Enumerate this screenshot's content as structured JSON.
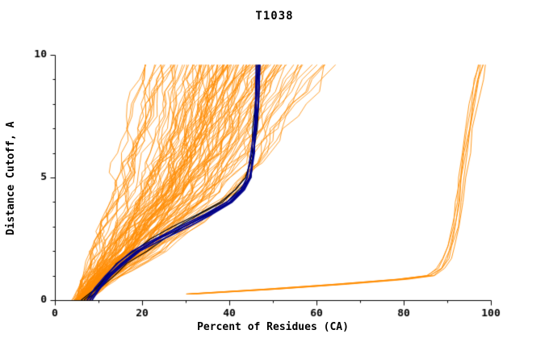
{
  "chart_data": {
    "type": "line",
    "title": "T1038",
    "xlabel": "Percent of Residues (CA)",
    "ylabel": "Distance Cutoff, A",
    "xlim": [
      0,
      100
    ],
    "ylim": [
      0,
      10
    ],
    "x_ticks": [
      0,
      20,
      40,
      60,
      80,
      100
    ],
    "x_minor_step": 10,
    "y_ticks": [
      0,
      5,
      10
    ],
    "y_minor_step": 1,
    "grid": false,
    "legend": null,
    "colors": {
      "background": "#ffffff",
      "axis": "#000000",
      "model_fan": "#ff8c00",
      "highlight_navy": "#00008b",
      "highlight_black": "#000000"
    },
    "seed": 42,
    "families": [
      {
        "name": "model-fan-orange",
        "description": "large fan of model curves, percent of CA residues under each distance cutoff",
        "color": "#ff8c00",
        "count": 115,
        "line_width": 0.8,
        "jitter": 1.8,
        "drift": 0.06,
        "anchors": [
          [
            0.0,
            4,
            8
          ],
          [
            0.4,
            4.5,
            11
          ],
          [
            0.8,
            5,
            14
          ],
          [
            1.2,
            5.5,
            18
          ],
          [
            1.6,
            6,
            22
          ],
          [
            2.0,
            6.5,
            26
          ],
          [
            2.4,
            7,
            29
          ],
          [
            2.8,
            7.5,
            32
          ],
          [
            3.2,
            8,
            35
          ],
          [
            3.6,
            9,
            38
          ],
          [
            4.0,
            9.5,
            41
          ],
          [
            4.4,
            10,
            44
          ],
          [
            4.8,
            10.5,
            46
          ],
          [
            5.2,
            11,
            48
          ],
          [
            5.6,
            11.5,
            50
          ],
          [
            6.0,
            12,
            52
          ],
          [
            6.5,
            12.5,
            54
          ],
          [
            7.0,
            13,
            56
          ],
          [
            7.5,
            13.5,
            58
          ],
          [
            8.0,
            14,
            60
          ],
          [
            8.5,
            14.5,
            62
          ],
          [
            9.0,
            15,
            64
          ],
          [
            9.6,
            15.5,
            67
          ]
        ]
      },
      {
        "name": "outlier-bundle-right-orange",
        "description": "tight bundle of near-native curves rising to ~97-100% at top right",
        "color": "#ff8c00",
        "count": 6,
        "line_width": 0.9,
        "jitter": 0.7,
        "drift": 0.03,
        "anchors": [
          [
            0.25,
            30,
            33
          ],
          [
            0.45,
            48,
            53
          ],
          [
            0.65,
            64,
            69
          ],
          [
            0.85,
            78,
            82
          ],
          [
            1.0,
            85,
            88.5
          ],
          [
            1.3,
            87.5,
            90.5
          ],
          [
            1.7,
            89,
            91.5
          ],
          [
            2.2,
            90,
            92.5
          ],
          [
            3.0,
            91,
            93.5
          ],
          [
            4.0,
            91.8,
            94.3
          ],
          [
            5.0,
            92.5,
            95
          ],
          [
            6.0,
            93.2,
            96
          ],
          [
            7.0,
            94,
            97
          ],
          [
            8.0,
            95,
            98
          ],
          [
            9.0,
            96,
            99
          ],
          [
            9.6,
            96.8,
            99.7
          ]
        ]
      },
      {
        "name": "highlight-black-curves",
        "description": "dark black reference curves threading through the fan",
        "color": "#000000",
        "count": 3,
        "line_width": 1.1,
        "jitter": 1.0,
        "drift": 0.04,
        "anchors": [
          [
            0.0,
            5,
            8
          ],
          [
            0.5,
            8,
            11
          ],
          [
            1.0,
            10,
            14
          ],
          [
            1.5,
            12,
            18
          ],
          [
            2.0,
            15,
            22
          ],
          [
            2.5,
            19,
            26
          ],
          [
            3.0,
            24,
            31
          ],
          [
            3.5,
            30,
            36
          ],
          [
            4.0,
            36,
            40.5
          ],
          [
            4.5,
            40,
            43
          ],
          [
            5.0,
            43,
            45
          ],
          [
            6.0,
            44.5,
            46
          ],
          [
            7.0,
            45,
            46.5
          ],
          [
            8.0,
            45.5,
            46.8
          ],
          [
            9.6,
            45.8,
            47
          ]
        ]
      },
      {
        "name": "highlight-navy-curves",
        "description": "thick navy curves saturating near 46% then vertical to top",
        "color": "#00008b",
        "count": 4,
        "line_width": 1.8,
        "jitter": 0.5,
        "drift": 0.02,
        "anchors": [
          [
            0.0,
            7,
            9
          ],
          [
            0.5,
            9,
            11
          ],
          [
            1.0,
            11,
            14
          ],
          [
            1.5,
            14,
            17
          ],
          [
            2.0,
            17,
            21
          ],
          [
            2.5,
            22,
            26
          ],
          [
            3.0,
            28,
            32
          ],
          [
            3.5,
            34,
            37
          ],
          [
            4.0,
            39,
            41.5
          ],
          [
            4.5,
            42.5,
            44
          ],
          [
            5.0,
            44,
            45.5
          ],
          [
            6.0,
            45,
            46
          ],
          [
            7.0,
            45.5,
            46.5
          ],
          [
            8.0,
            46,
            47
          ],
          [
            9.6,
            46,
            47.5
          ]
        ]
      }
    ]
  }
}
